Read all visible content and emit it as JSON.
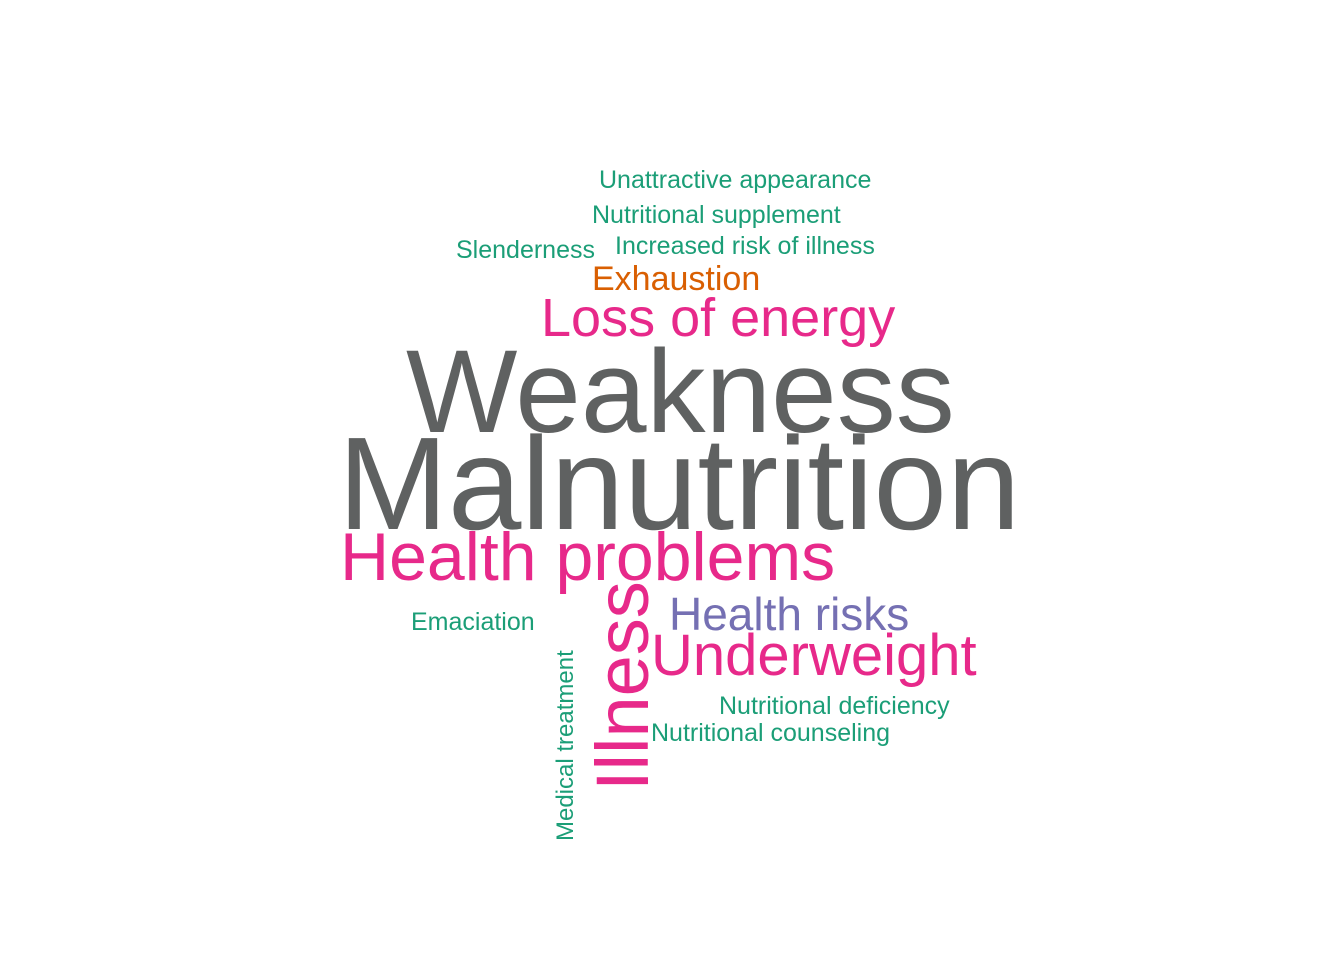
{
  "colors": {
    "grey": "#5f6161",
    "pink": "#e7298a",
    "teal": "#1b9e77",
    "orange": "#d95f02",
    "purple": "#7570b3"
  },
  "words": {
    "unattractive_appearance": "Unattractive appearance",
    "nutritional_supplement": "Nutritional supplement",
    "slenderness": "Slenderness",
    "increased_risk_of_illness": "Increased risk of illness",
    "exhaustion": "Exhaustion",
    "loss_of_energy": "Loss of energy",
    "weakness": "Weakness",
    "malnutrition": "Malnutrition",
    "health_problems": "Health problems",
    "emaciation": "Emaciation",
    "health_risks": "Health risks",
    "underweight": "Underweight",
    "illness": "Illness",
    "medical_treatment": "Medical treatment",
    "nutritional_deficiency": "Nutritional deficiency",
    "nutritional_counseling": "Nutritional counseling"
  }
}
